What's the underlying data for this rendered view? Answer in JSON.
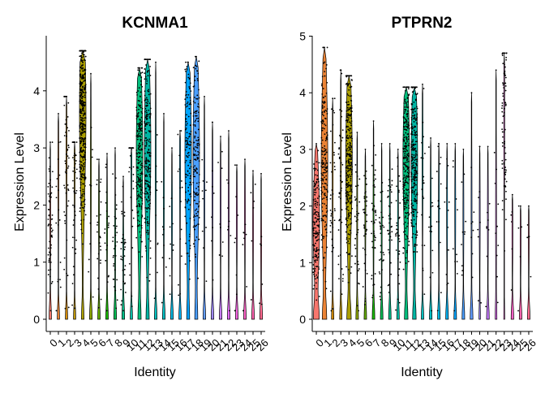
{
  "chart_data": [
    {
      "type": "violin",
      "title": "KCNMA1",
      "xlabel": "Identity",
      "ylabel": "Expression Level",
      "ylim": [
        0,
        4.8
      ],
      "yticks": [
        0,
        1,
        2,
        3,
        4
      ],
      "categories": [
        "0",
        "1",
        "2",
        "3",
        "4",
        "5",
        "6",
        "7",
        "8",
        "9",
        "10",
        "11",
        "12",
        "13",
        "14",
        "15",
        "16",
        "17",
        "18",
        "19",
        "20",
        "21",
        "22",
        "23",
        "24",
        "25",
        "26"
      ],
      "colors": [
        "#F8766D",
        "#EB8335",
        "#DA8F00",
        "#C49A00",
        "#AC9F00",
        "#8FA800",
        "#67B000",
        "#1ABC00",
        "#00BE55",
        "#00C08B",
        "#00C1AA",
        "#00BF7D",
        "#00B6A4",
        "#00C0BF",
        "#00BFC4",
        "#00B9E3",
        "#00B2F3",
        "#00A5FF",
        "#4B9FFF",
        "#619CFF",
        "#9E87FF",
        "#C77CFF",
        "#E36EF6",
        "#F564E3",
        "#FF61C9",
        "#FF64B0",
        "#FF6C91"
      ],
      "max_values": [
        3.1,
        3.6,
        3.9,
        3.1,
        4.7,
        4.3,
        2.8,
        2.9,
        3.0,
        2.5,
        3.0,
        4.4,
        4.55,
        4.5,
        3.6,
        3.0,
        3.3,
        4.5,
        4.6,
        3.9,
        3.45,
        3.2,
        3.3,
        2.7,
        2.8,
        2.6,
        2.55
      ],
      "zero_fraction": [
        0.85,
        0.85,
        0.85,
        0.85,
        0.3,
        0.95,
        0.9,
        0.9,
        0.9,
        0.92,
        0.88,
        0.35,
        0.35,
        0.95,
        0.95,
        0.95,
        0.9,
        0.3,
        0.3,
        0.95,
        0.95,
        0.95,
        0.95,
        0.95,
        0.95,
        0.95,
        0.95
      ],
      "mode_level": [
        1.7,
        2.5,
        2.9,
        2.6,
        3.6,
        2.5,
        1.8,
        1.6,
        1.3,
        1.2,
        2.9,
        2.9,
        3.0,
        2.6,
        2.0,
        1.8,
        2.6,
        2.9,
        2.9,
        2.2,
        2.2,
        2.0,
        1.9,
        1.8,
        1.8,
        1.6,
        1.3
      ],
      "n_points": [
        60,
        18,
        50,
        45,
        420,
        10,
        25,
        20,
        30,
        35,
        30,
        230,
        230,
        10,
        10,
        10,
        15,
        130,
        150,
        10,
        8,
        8,
        8,
        8,
        8,
        6,
        6
      ]
    },
    {
      "type": "violin",
      "title": "PTPRN2",
      "xlabel": "Identity",
      "ylabel": "Expression Level",
      "ylim": [
        0,
        5
      ],
      "yticks": [
        0,
        1,
        2,
        3,
        4,
        5
      ],
      "categories": [
        "0",
        "1",
        "2",
        "3",
        "4",
        "5",
        "6",
        "7",
        "8",
        "9",
        "10",
        "11",
        "12",
        "13",
        "14",
        "15",
        "16",
        "17",
        "18",
        "19",
        "20",
        "21",
        "22",
        "23",
        "24",
        "25",
        "26"
      ],
      "colors": [
        "#F8766D",
        "#EB8335",
        "#DA8F00",
        "#C49A00",
        "#AC9F00",
        "#8FA800",
        "#67B000",
        "#1ABC00",
        "#00BE55",
        "#00C08B",
        "#00C1AA",
        "#00BF7D",
        "#00B6A4",
        "#00C0BF",
        "#00BFC4",
        "#00B9E3",
        "#00B2F3",
        "#00A5FF",
        "#4B9FFF",
        "#619CFF",
        "#9E87FF",
        "#C77CFF",
        "#E36EF6",
        "#F564E3",
        "#FF61C9",
        "#FF64B0",
        "#FF6C91"
      ],
      "max_values": [
        3.1,
        4.8,
        3.9,
        4.4,
        4.3,
        3.3,
        3.0,
        3.5,
        3.1,
        3.1,
        3.0,
        4.1,
        4.1,
        4.15,
        3.2,
        3.1,
        3.1,
        3.1,
        3.0,
        4.0,
        3.05,
        3.05,
        4.4,
        4.7,
        2.2,
        2.0,
        2.0
      ],
      "zero_fraction": [
        0.6,
        0.45,
        0.85,
        0.85,
        0.5,
        0.9,
        0.9,
        0.9,
        0.9,
        0.9,
        0.9,
        0.4,
        0.4,
        0.9,
        0.95,
        0.95,
        0.95,
        0.95,
        0.95,
        0.95,
        0.5,
        0.95,
        0.5,
        0.2,
        0.95,
        0.95,
        0.95
      ],
      "mode_level": [
        1.7,
        2.8,
        2.5,
        2.8,
        2.8,
        1.8,
        1.9,
        1.8,
        1.6,
        1.8,
        1.7,
        2.8,
        2.8,
        2.8,
        1.9,
        1.9,
        1.9,
        1.9,
        1.8,
        1.9,
        1.8,
        1.8,
        1.8,
        3.5,
        1.5,
        1.4,
        1.4
      ],
      "n_points": [
        160,
        200,
        40,
        45,
        300,
        35,
        40,
        45,
        30,
        40,
        35,
        250,
        250,
        20,
        15,
        15,
        12,
        10,
        10,
        8,
        8,
        8,
        10,
        80,
        5,
        5,
        5
      ]
    }
  ]
}
